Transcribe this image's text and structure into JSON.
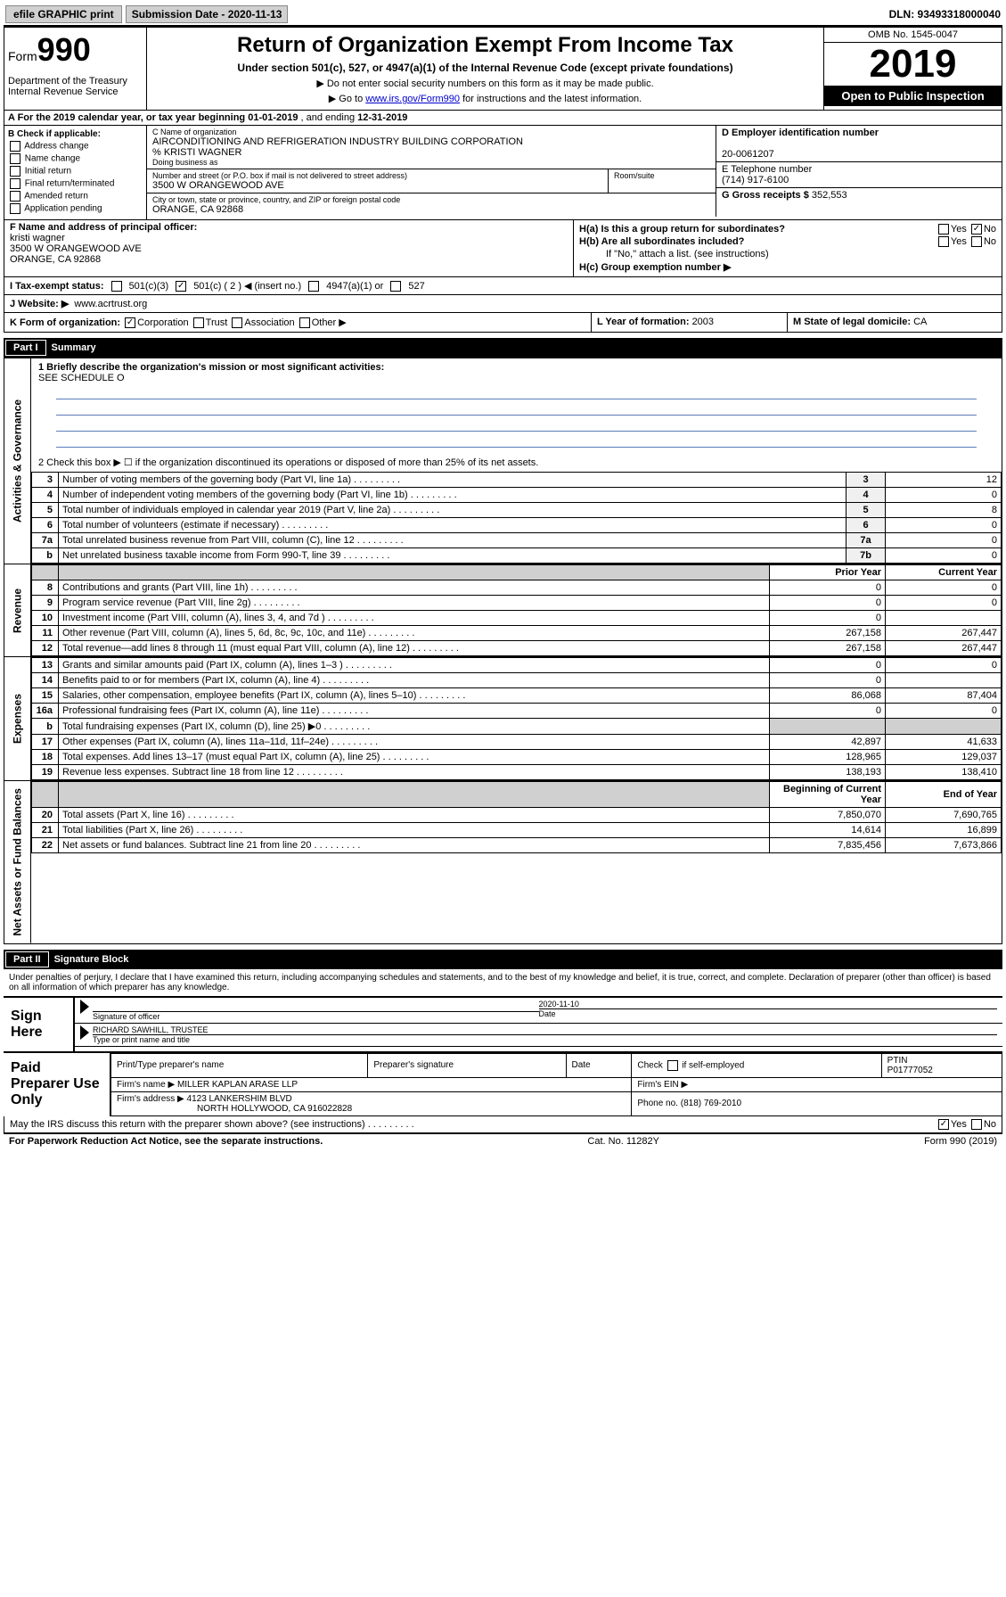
{
  "topbar": {
    "efile": "efile GRAPHIC print",
    "submission_label": "Submission Date - 2020-11-13",
    "dln": "DLN: 93493318000040"
  },
  "header": {
    "form_word": "Form",
    "form_num": "990",
    "dept": "Department of the Treasury\nInternal Revenue Service",
    "title": "Return of Organization Exempt From Income Tax",
    "subtitle": "Under section 501(c), 527, or 4947(a)(1) of the Internal Revenue Code (except private foundations)",
    "note1": "▶ Do not enter social security numbers on this form as it may be made public.",
    "note2_pre": "▶ Go to ",
    "note2_link": "www.irs.gov/Form990",
    "note2_post": " for instructions and the latest information.",
    "omb": "OMB No. 1545-0047",
    "year": "2019",
    "open": "Open to Public Inspection"
  },
  "row_a": {
    "text_pre": "A For the 2019 calendar year, or tax year beginning ",
    "begin": "01-01-2019",
    "mid": " , and ending ",
    "end": "12-31-2019"
  },
  "box_b": {
    "label": "B Check if applicable:",
    "items": [
      "Address change",
      "Name change",
      "Initial return",
      "Final return/terminated",
      "Amended return",
      "Application pending"
    ]
  },
  "box_c": {
    "name_label": "C Name of organization",
    "org_name": "AIRCONDITIONING AND REFRIGERATION INDUSTRY BUILDING CORPORATION",
    "care_of": "% KRISTI WAGNER",
    "dba_label": "Doing business as",
    "dba": "",
    "street_label": "Number and street (or P.O. box if mail is not delivered to street address)",
    "room_label": "Room/suite",
    "street": "3500 W ORANGEWOOD AVE",
    "city_label": "City or town, state or province, country, and ZIP or foreign postal code",
    "city": "ORANGE, CA  92868"
  },
  "box_d": {
    "ein_label": "D Employer identification number",
    "ein": "20-0061207",
    "tel_label": "E Telephone number",
    "tel": "(714) 917-6100",
    "gross_label": "G Gross receipts $ ",
    "gross": "352,553"
  },
  "box_f": {
    "label": "F Name and address of principal officer:",
    "name": "kristi wagner",
    "addr1": "3500 W ORANGEWOOD AVE",
    "addr2": "ORANGE, CA  92868"
  },
  "box_h": {
    "a_label": "H(a)  Is this a group return for subordinates?",
    "b_label": "H(b)  Are all subordinates included?",
    "b_note": "If \"No,\" attach a list. (see instructions)",
    "c_label": "H(c)  Group exemption number ▶",
    "yes": "Yes",
    "no": "No"
  },
  "row_i": {
    "label": "I Tax-exempt status:",
    "o1": "501(c)(3)",
    "o2": "501(c) ( 2 ) ◀ (insert no.)",
    "o3": "4947(a)(1) or",
    "o4": "527"
  },
  "row_j": {
    "label": "J Website: ▶",
    "url": "www.acrtrust.org"
  },
  "row_k": {
    "label": "K Form of organization:",
    "o1": "Corporation",
    "o2": "Trust",
    "o3": "Association",
    "o4": "Other ▶"
  },
  "row_l": {
    "label": "L Year of formation: ",
    "val": "2003"
  },
  "row_m": {
    "label": "M State of legal domicile: ",
    "val": "CA"
  },
  "part1": {
    "num": "Part I",
    "title": "Summary"
  },
  "summary": {
    "side_gov": "Activities & Governance",
    "side_rev": "Revenue",
    "side_exp": "Expenses",
    "side_net": "Net Assets or Fund Balances",
    "line1": "1  Briefly describe the organization's mission or most significant activities:",
    "line1_val": "SEE SCHEDULE O",
    "line2": "2   Check this box ▶ ☐ if the organization discontinued its operations or disposed of more than 25% of its net assets.",
    "rows_gov": [
      {
        "n": "3",
        "desc": "Number of voting members of the governing body (Part VI, line 1a)",
        "box": "3",
        "val": "12"
      },
      {
        "n": "4",
        "desc": "Number of independent voting members of the governing body (Part VI, line 1b)",
        "box": "4",
        "val": "0"
      },
      {
        "n": "5",
        "desc": "Total number of individuals employed in calendar year 2019 (Part V, line 2a)",
        "box": "5",
        "val": "8"
      },
      {
        "n": "6",
        "desc": "Total number of volunteers (estimate if necessary)",
        "box": "6",
        "val": "0"
      },
      {
        "n": "7a",
        "desc": "Total unrelated business revenue from Part VIII, column (C), line 12",
        "box": "7a",
        "val": "0"
      },
      {
        "n": "b",
        "desc": "Net unrelated business taxable income from Form 990-T, line 39",
        "box": "7b",
        "val": "0"
      }
    ],
    "hdr_prior": "Prior Year",
    "hdr_current": "Current Year",
    "rows_rev": [
      {
        "n": "8",
        "desc": "Contributions and grants (Part VIII, line 1h)",
        "p": "0",
        "c": "0"
      },
      {
        "n": "9",
        "desc": "Program service revenue (Part VIII, line 2g)",
        "p": "0",
        "c": "0"
      },
      {
        "n": "10",
        "desc": "Investment income (Part VIII, column (A), lines 3, 4, and 7d )",
        "p": "0",
        "c": ""
      },
      {
        "n": "11",
        "desc": "Other revenue (Part VIII, column (A), lines 5, 6d, 8c, 9c, 10c, and 11e)",
        "p": "267,158",
        "c": "267,447"
      },
      {
        "n": "12",
        "desc": "Total revenue—add lines 8 through 11 (must equal Part VIII, column (A), line 12)",
        "p": "267,158",
        "c": "267,447"
      }
    ],
    "rows_exp": [
      {
        "n": "13",
        "desc": "Grants and similar amounts paid (Part IX, column (A), lines 1–3 )",
        "p": "0",
        "c": "0"
      },
      {
        "n": "14",
        "desc": "Benefits paid to or for members (Part IX, column (A), line 4)",
        "p": "0",
        "c": ""
      },
      {
        "n": "15",
        "desc": "Salaries, other compensation, employee benefits (Part IX, column (A), lines 5–10)",
        "p": "86,068",
        "c": "87,404"
      },
      {
        "n": "16a",
        "desc": "Professional fundraising fees (Part IX, column (A), line 11e)",
        "p": "0",
        "c": "0"
      },
      {
        "n": "b",
        "desc": "Total fundraising expenses (Part IX, column (D), line 25) ▶0",
        "p": "",
        "c": "",
        "gray": true
      },
      {
        "n": "17",
        "desc": "Other expenses (Part IX, column (A), lines 11a–11d, 11f–24e)",
        "p": "42,897",
        "c": "41,633"
      },
      {
        "n": "18",
        "desc": "Total expenses. Add lines 13–17 (must equal Part IX, column (A), line 25)",
        "p": "128,965",
        "c": "129,037"
      },
      {
        "n": "19",
        "desc": "Revenue less expenses. Subtract line 18 from line 12",
        "p": "138,193",
        "c": "138,410"
      }
    ],
    "hdr_begin": "Beginning of Current Year",
    "hdr_end": "End of Year",
    "rows_net": [
      {
        "n": "20",
        "desc": "Total assets (Part X, line 16)",
        "p": "7,850,070",
        "c": "7,690,765"
      },
      {
        "n": "21",
        "desc": "Total liabilities (Part X, line 26)",
        "p": "14,614",
        "c": "16,899"
      },
      {
        "n": "22",
        "desc": "Net assets or fund balances. Subtract line 21 from line 20",
        "p": "7,835,456",
        "c": "7,673,866"
      }
    ]
  },
  "part2": {
    "num": "Part II",
    "title": "Signature Block"
  },
  "penalty": "Under penalties of perjury, I declare that I have examined this return, including accompanying schedules and statements, and to the best of my knowledge and belief, it is true, correct, and complete. Declaration of preparer (other than officer) is based on all information of which preparer has any knowledge.",
  "sign": {
    "here": "Sign Here",
    "sig_label": "Signature of officer",
    "date_label": "Date",
    "date_val": "2020-11-10",
    "name": "RICHARD SAWHILL, TRUSTEE",
    "name_label": "Type or print name and title"
  },
  "prep": {
    "label": "Paid Preparer Use Only",
    "h1": "Print/Type preparer's name",
    "h2": "Preparer's signature",
    "h3": "Date",
    "h4_pre": "Check",
    "h4_post": "if self-employed",
    "h5": "PTIN",
    "ptin": "P01777052",
    "firm_label": "Firm's name   ▶",
    "firm": "MILLER KAPLAN ARASE LLP",
    "ein_label": "Firm's EIN ▶",
    "addr_label": "Firm's address ▶",
    "addr1": "4123 LANKERSHIM BLVD",
    "addr2": "NORTH HOLLYWOOD, CA  916022828",
    "phone_label": "Phone no. ",
    "phone": "(818) 769-2010"
  },
  "footer": {
    "q": "May the IRS discuss this return with the preparer shown above? (see instructions)",
    "yes": "Yes",
    "no": "No",
    "pra": "For Paperwork Reduction Act Notice, see the separate instructions.",
    "cat": "Cat. No. 11282Y",
    "form": "Form 990 (2019)"
  }
}
